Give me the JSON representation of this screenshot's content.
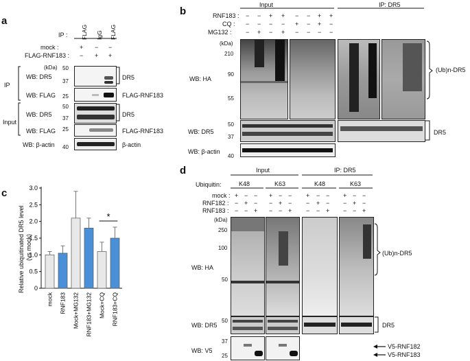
{
  "panel_a": {
    "label": "a",
    "ip_label": "IP :",
    "ip_cols": [
      "FLAG",
      "IgG",
      "FLAG"
    ],
    "rows": [
      {
        "name": "mock :",
        "signs": [
          "+",
          "−",
          "−"
        ]
      },
      {
        "name": "FLAG-RNF183 :",
        "signs": [
          "−",
          "+",
          "+"
        ]
      }
    ],
    "kda": "(kDa)",
    "ip_group": "IP",
    "input_group": "Input",
    "wb_dr5": "WB: DR5",
    "wb_flag": "WB: FLAG",
    "wb_actin": "WB: β-actin",
    "markers": {
      "m50": "50",
      "m37": "37",
      "m25": "25",
      "m40": "40"
    },
    "band_dr5": "DR5",
    "band_flag": "FLAG-RNF183",
    "band_actin": "β-actin"
  },
  "panel_b": {
    "label": "b",
    "input": "Input",
    "ip": "IP: DR5",
    "rows": [
      {
        "name": "RNF183 :",
        "signs": [
          "−",
          "−",
          "+",
          "+",
          "−",
          "−",
          "+",
          "+"
        ]
      },
      {
        "name": "CQ :",
        "signs": [
          "−",
          "−",
          "−",
          "−",
          "+",
          "−",
          "+",
          "−"
        ]
      },
      {
        "name": "MG132 :",
        "signs": [
          "−",
          "+",
          "−",
          "+",
          "−",
          "−",
          "−",
          "−"
        ]
      }
    ],
    "kda": "(kDa)",
    "markers": {
      "m210": "210",
      "m90": "90",
      "m55": "55",
      "m50": "50",
      "m37": "37",
      "m40": "40"
    },
    "wb_ha": "WB: HA",
    "wb_dr5": "WB: DR5",
    "wb_actin": "WB: β-actin",
    "ub": "(Ub)n-DR5",
    "dr5": "DR5"
  },
  "panel_c": {
    "label": "c",
    "ylabel_line1": "Relative ubiquitinated DR5 level",
    "ylabel_line2": "(vs mock)",
    "star": "*"
  },
  "chart_data": {
    "type": "bar",
    "categories": [
      "mock",
      "RNF183",
      "Mock+MG132",
      "RNF183+MG132",
      "Mock+CQ",
      "RNF183+CQ"
    ],
    "values": [
      1.0,
      1.05,
      2.1,
      1.8,
      1.1,
      1.5
    ],
    "errors": [
      0.1,
      0.22,
      0.8,
      0.3,
      0.28,
      0.33
    ],
    "colors": [
      "#e8e8e8",
      "#4a90d9",
      "#e8e8e8",
      "#4a90d9",
      "#e8e8e8",
      "#4a90d9"
    ],
    "ylim": [
      0,
      3
    ],
    "yticks": [
      "0",
      "0.5",
      "1.0",
      "1.5",
      "2.0",
      "2.5",
      "3.0"
    ],
    "significance": {
      "between": [
        "Mock+CQ",
        "RNF183+CQ"
      ],
      "mark": "*"
    }
  },
  "panel_d": {
    "label": "d",
    "input": "Input",
    "ip": "IP: DR5",
    "ubiquitin": "Ubiquitin:",
    "groups": [
      "K48",
      "K63",
      "K48",
      "K63"
    ],
    "rows": [
      {
        "name": "mock :",
        "signs": [
          "+",
          "−",
          "−",
          "+",
          "−",
          "−",
          "+",
          "−",
          "−",
          "+",
          "−",
          "−"
        ]
      },
      {
        "name": "RNF182 :",
        "signs": [
          "−",
          "+",
          "−",
          "−",
          "+",
          "−",
          "−",
          "+",
          "−",
          "−",
          "+",
          "−"
        ]
      },
      {
        "name": "RNF183 :",
        "signs": [
          "−",
          "−",
          "+",
          "−",
          "−",
          "+",
          "−",
          "−",
          "+",
          "−",
          "−",
          "+"
        ]
      }
    ],
    "kda": "(kDa)",
    "markers": {
      "m250": "250",
      "m100": "100",
      "m50": "50",
      "m50b": "50",
      "m37": "37",
      "m25": "25"
    },
    "wb_ha": "WB: HA",
    "wb_dr5": "WB: DR5",
    "wb_v5": "WB: V5",
    "ub": "(Ub)n-DR5",
    "dr5": "DR5",
    "v5_182": "V5-RNF182",
    "v5_183": "V5-RNF183"
  }
}
